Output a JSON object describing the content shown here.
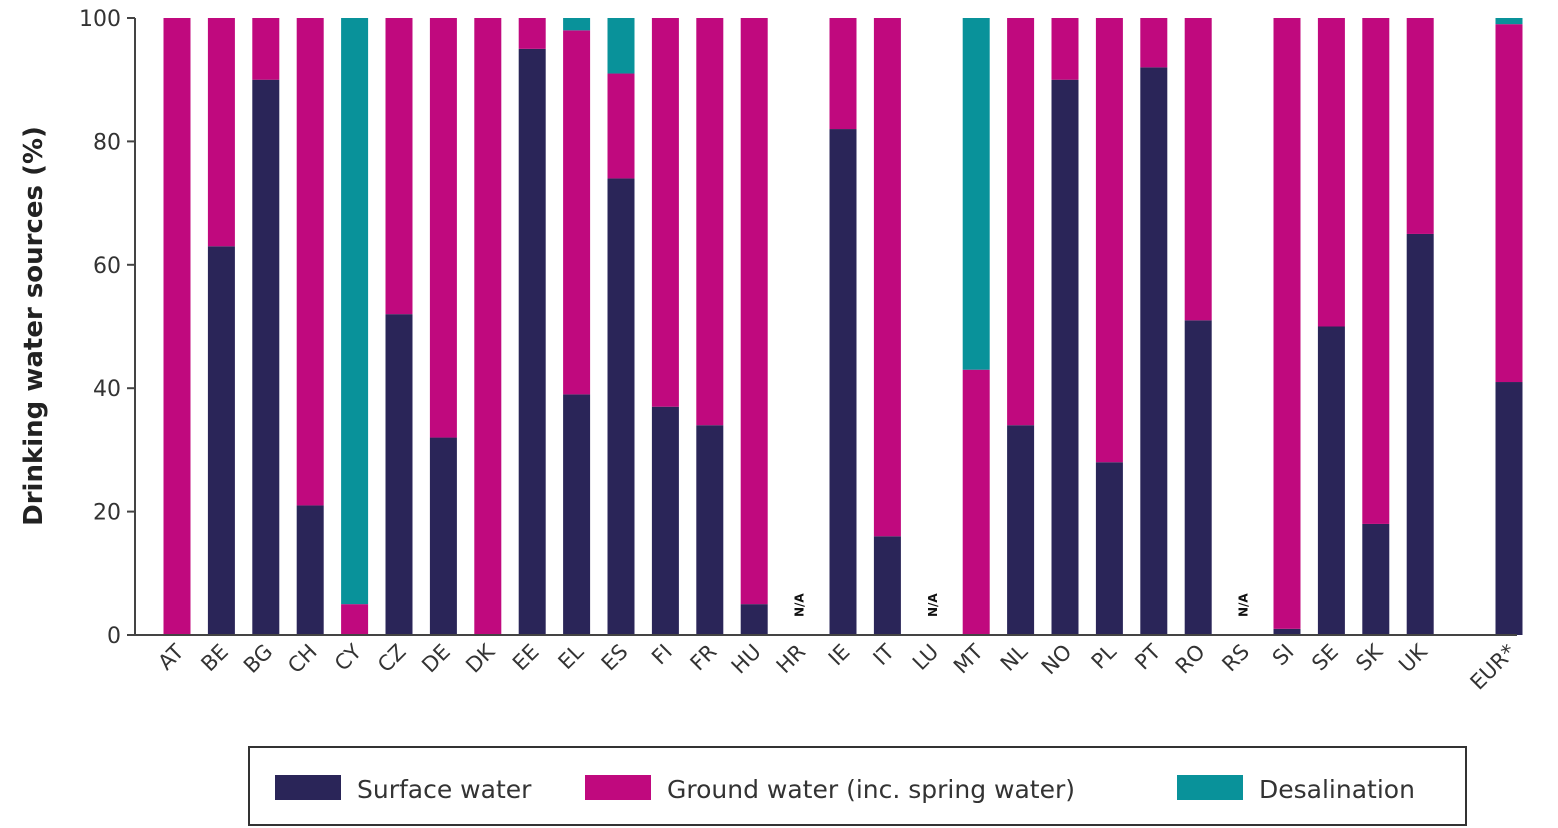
{
  "chart_data": {
    "type": "bar",
    "stacked": true,
    "ylabel": "Drinking water sources (%)",
    "xlabel": "",
    "ylim": [
      0,
      100
    ],
    "yticks": [
      0,
      20,
      40,
      60,
      80,
      100
    ],
    "grid": false,
    "legend_position": "bottom",
    "categories": [
      "AT",
      "BE",
      "BG",
      "CH",
      "CY",
      "CZ",
      "DE",
      "DK",
      "EE",
      "EL",
      "ES",
      "FI",
      "FR",
      "HU",
      "HR",
      "IE",
      "IT",
      "LU",
      "MT",
      "NL",
      "NO",
      "PL",
      "PT",
      "RO",
      "RS",
      "SI",
      "SE",
      "SK",
      "UK",
      "",
      "EUR*"
    ],
    "not_available": [
      "HR",
      "LU",
      "RS"
    ],
    "na_label": "N/A",
    "series": [
      {
        "name": "Surface water",
        "color": "#2a2558",
        "values": [
          0,
          63,
          90,
          21,
          0,
          52,
          32,
          0,
          95,
          39,
          74,
          37,
          34,
          5,
          null,
          82,
          16,
          null,
          0,
          34,
          90,
          28,
          92,
          51,
          null,
          1,
          50,
          18,
          65,
          null,
          41
        ]
      },
      {
        "name": "Ground water (inc. spring water)",
        "color": "#c0097e",
        "values": [
          100,
          37,
          10,
          79,
          5,
          48,
          68,
          100,
          5,
          59,
          17,
          63,
          66,
          95,
          null,
          18,
          84,
          null,
          43,
          66,
          10,
          72,
          8,
          49,
          null,
          99,
          50,
          82,
          35,
          null,
          58
        ]
      },
      {
        "name": "Desalination",
        "color": "#09929a",
        "values": [
          0,
          0,
          0,
          0,
          95,
          0,
          0,
          0,
          0,
          2,
          9,
          0,
          0,
          0,
          null,
          0,
          0,
          null,
          57,
          0,
          0,
          0,
          0,
          0,
          null,
          0,
          0,
          0,
          0,
          null,
          1
        ]
      }
    ]
  }
}
